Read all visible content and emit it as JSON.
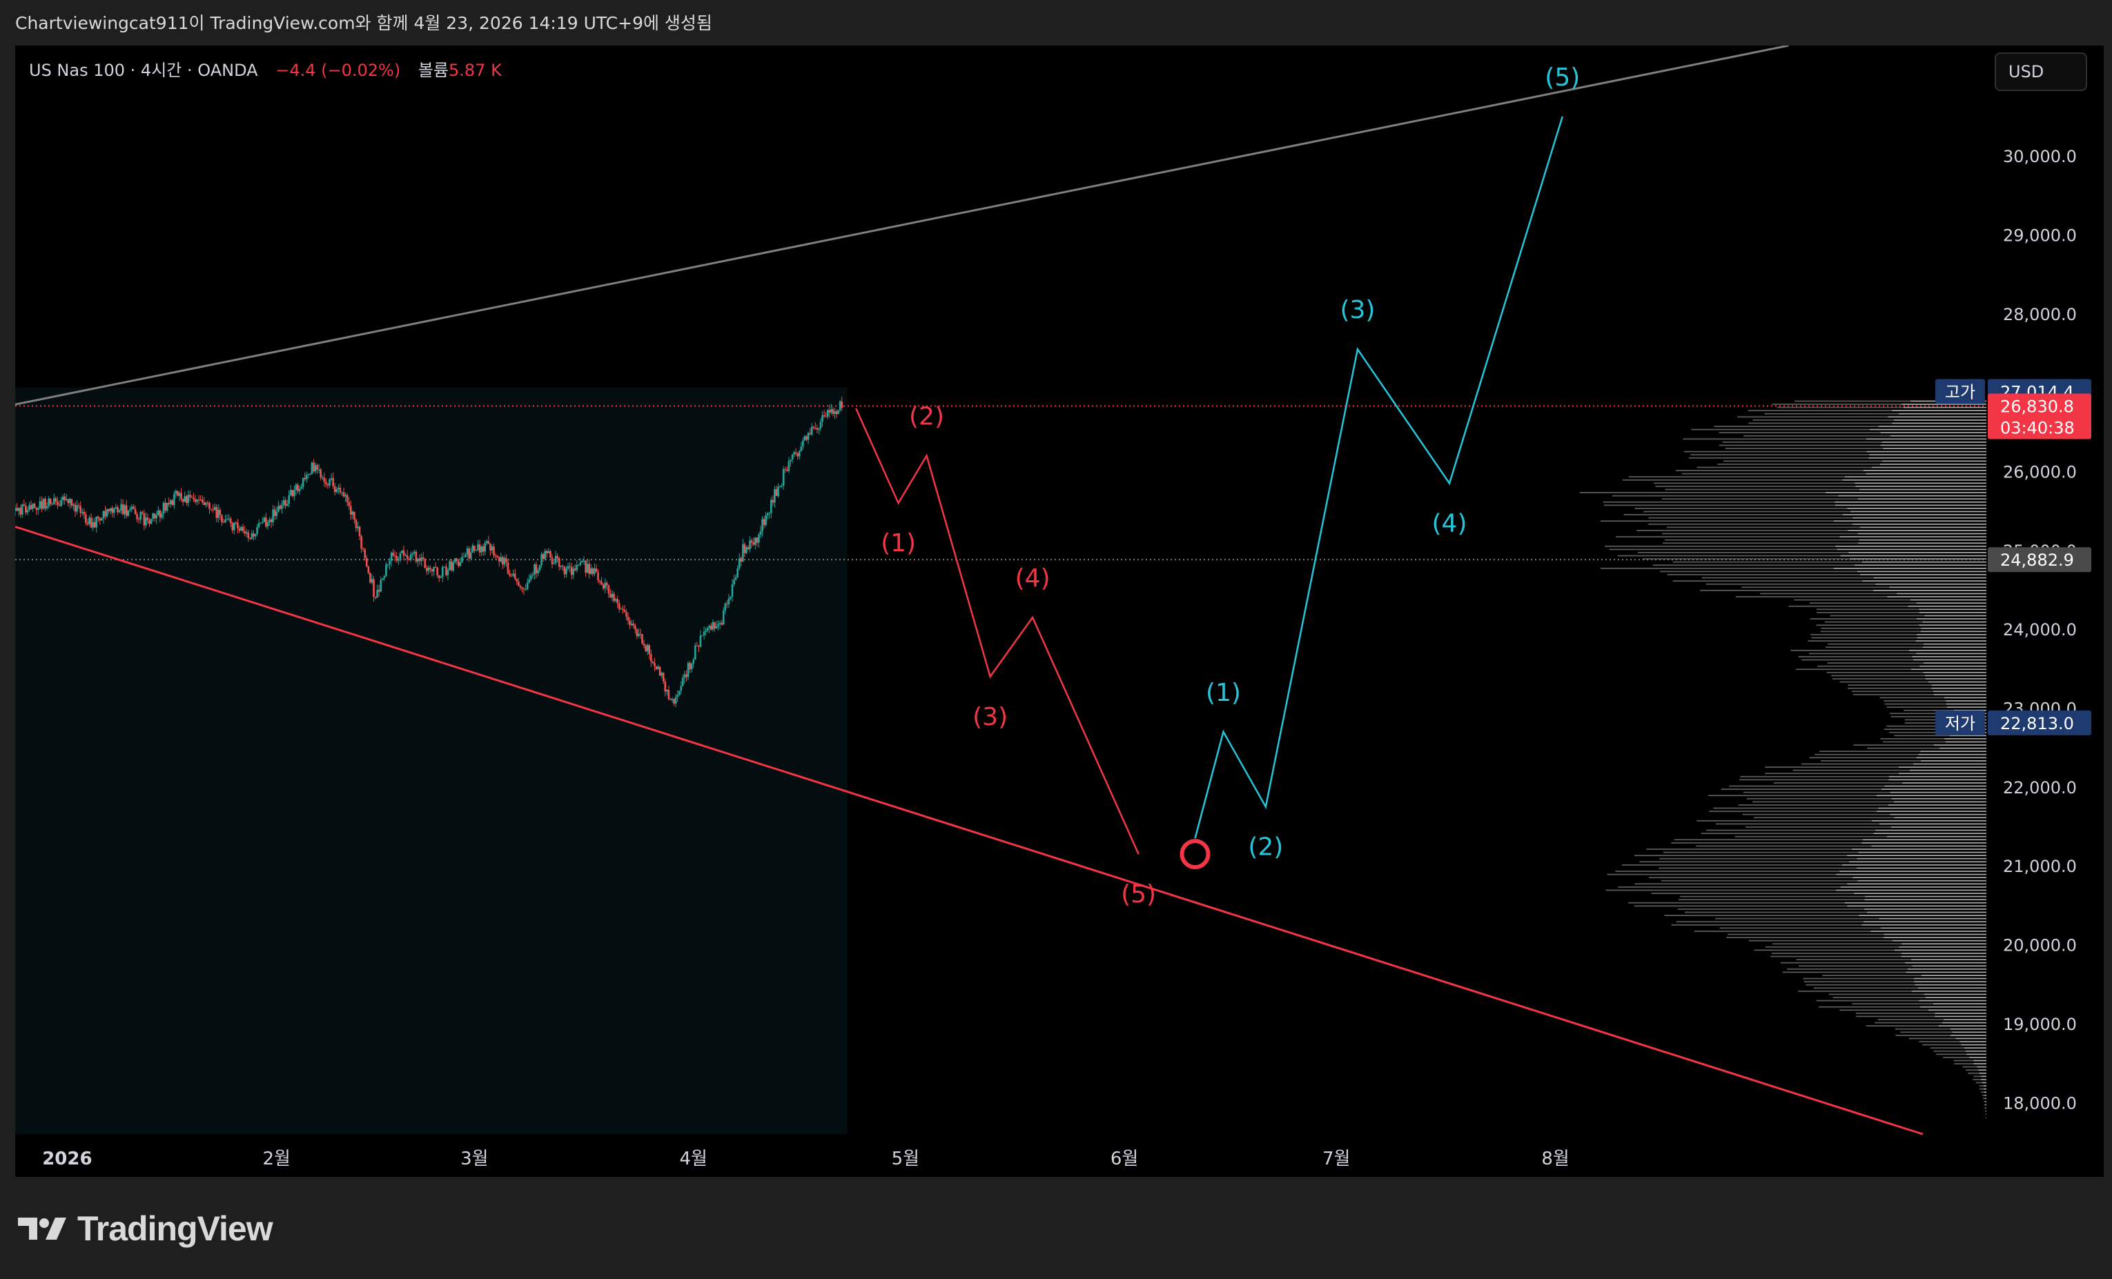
{
  "caption": "Chartviewingcat911이 TradingView.com와 함께 4월 23, 2026 14:19 UTC+9에 생성됨",
  "legend": {
    "symbol": "US Nas 100 · 4시간 · OANDA",
    "change": "−4.4 (−0.02%)",
    "volume_label": "볼륨",
    "volume_value": "5.87 K"
  },
  "currency": "USD",
  "logo_text": "TradingView",
  "colors": {
    "background": "#000000",
    "frame": "#1f1f1f",
    "up": "#26a69a",
    "down": "#ef5350",
    "red_wave": "#f23645",
    "blue_wave": "#26c6da",
    "label_blue": "#1e3a6e",
    "price_red": "#f23645",
    "profile_light": "#a6a6a6",
    "profile_dark": "#5a5a5a"
  },
  "chart_data": {
    "type": "line",
    "title": "US Nas 100 · 4시간 · OANDA",
    "y_axis": {
      "ticks": [
        "18,000.0",
        "19,000.0",
        "20,000.0",
        "21,000.0",
        "22,000.0",
        "23,000.0",
        "24,000.0",
        "25,000.0",
        "26,000.0",
        "27,000.0",
        "28,000.0",
        "29,000.0",
        "30,000.0"
      ],
      "range": [
        17600,
        31400
      ]
    },
    "x_axis": {
      "ticks": [
        "2026",
        "2월",
        "3월",
        "4월",
        "5월",
        "6월",
        "7월",
        "8월"
      ],
      "tick_dates": [
        "2026-01-01",
        "2026-02-01",
        "2026-03-01",
        "2026-04-01",
        "2026-05-01",
        "2026-06-01",
        "2026-07-01",
        "2026-08-01"
      ],
      "range": [
        "2025-12-26",
        "2026-10-01"
      ]
    },
    "price_labels": {
      "high": {
        "label": "고가",
        "value": "27,014.4"
      },
      "current": {
        "value": "26,830.8",
        "countdown": "03:40:38"
      },
      "gray": {
        "value": "24,882.9"
      },
      "low": {
        "label": "저가",
        "value": "22,813.0"
      }
    },
    "price_path": [
      {
        "date": "2025-12-26",
        "value": 25500
      },
      {
        "date": "2026-01-02",
        "value": 25650
      },
      {
        "date": "2026-01-06",
        "value": 25350
      },
      {
        "date": "2026-01-10",
        "value": 25550
      },
      {
        "date": "2026-01-14",
        "value": 25350
      },
      {
        "date": "2026-01-18",
        "value": 25700
      },
      {
        "date": "2026-01-22",
        "value": 25550
      },
      {
        "date": "2026-01-26",
        "value": 25300
      },
      {
        "date": "2026-01-28",
        "value": 25150
      },
      {
        "date": "2026-02-01",
        "value": 25500
      },
      {
        "date": "2026-02-04",
        "value": 25800
      },
      {
        "date": "2026-02-06",
        "value": 26050
      },
      {
        "date": "2026-02-09",
        "value": 25850
      },
      {
        "date": "2026-02-11",
        "value": 25600
      },
      {
        "date": "2026-02-13",
        "value": 25100
      },
      {
        "date": "2026-02-15",
        "value": 24400
      },
      {
        "date": "2026-02-17",
        "value": 24900
      },
      {
        "date": "2026-02-20",
        "value": 24950
      },
      {
        "date": "2026-02-24",
        "value": 24700
      },
      {
        "date": "2026-02-28",
        "value": 24950
      },
      {
        "date": "2026-03-03",
        "value": 25100
      },
      {
        "date": "2026-03-05",
        "value": 24850
      },
      {
        "date": "2026-03-08",
        "value": 24550
      },
      {
        "date": "2026-03-11",
        "value": 24950
      },
      {
        "date": "2026-03-14",
        "value": 24750
      },
      {
        "date": "2026-03-17",
        "value": 24800
      },
      {
        "date": "2026-03-20",
        "value": 24500
      },
      {
        "date": "2026-03-23",
        "value": 24100
      },
      {
        "date": "2026-03-25",
        "value": 23800
      },
      {
        "date": "2026-03-27",
        "value": 23500
      },
      {
        "date": "2026-03-29",
        "value": 23050
      },
      {
        "date": "2026-03-31",
        "value": 23450
      },
      {
        "date": "2026-04-02",
        "value": 23900
      },
      {
        "date": "2026-04-05",
        "value": 24100
      },
      {
        "date": "2026-04-07",
        "value": 24700
      },
      {
        "date": "2026-04-08",
        "value": 25000
      },
      {
        "date": "2026-04-10",
        "value": 25150
      },
      {
        "date": "2026-04-12",
        "value": 25600
      },
      {
        "date": "2026-04-14",
        "value": 26000
      },
      {
        "date": "2026-04-16",
        "value": 26300
      },
      {
        "date": "2026-04-18",
        "value": 26550
      },
      {
        "date": "2026-04-20",
        "value": 26700
      },
      {
        "date": "2026-04-22",
        "value": 26830
      }
    ],
    "series": [
      {
        "color": "#f23645",
        "points": [
          {
            "date": "2026-04-24",
            "value": 26800,
            "label": ""
          },
          {
            "date": "2026-04-30",
            "value": 25600,
            "label": "(1)"
          },
          {
            "date": "2026-05-04",
            "value": 26200,
            "label": "(2)"
          },
          {
            "date": "2026-05-13",
            "value": 23400,
            "label": "(3)"
          },
          {
            "date": "2026-05-19",
            "value": 24150,
            "label": "(4)"
          },
          {
            "date": "2026-06-03",
            "value": 21150,
            "label": "(5)"
          }
        ]
      },
      {
        "color": "#26c6da",
        "points": [
          {
            "date": "2026-06-11",
            "value": 21350,
            "label": ""
          },
          {
            "date": "2026-06-15",
            "value": 22700,
            "label": "(1)"
          },
          {
            "date": "2026-06-21",
            "value": 21750,
            "label": "(2)"
          },
          {
            "date": "2026-07-04",
            "value": 27550,
            "label": "(3)"
          },
          {
            "date": "2026-07-17",
            "value": 25850,
            "label": "(4)"
          },
          {
            "date": "2026-08-02",
            "value": 30500,
            "label": "(5)"
          }
        ]
      }
    ],
    "trendlines": [
      {
        "color": "#7f7f7f",
        "from": {
          "date": "2025-12-26",
          "value": 26850
        },
        "to": {
          "date": "2026-09-03",
          "value": 31400
        }
      },
      {
        "color": "#f23645",
        "from": {
          "date": "2025-12-26",
          "value": 25300
        },
        "to": {
          "date": "2026-09-22",
          "value": 17600
        }
      }
    ],
    "marker": {
      "date": "2026-06-11",
      "value": 21150
    }
  }
}
